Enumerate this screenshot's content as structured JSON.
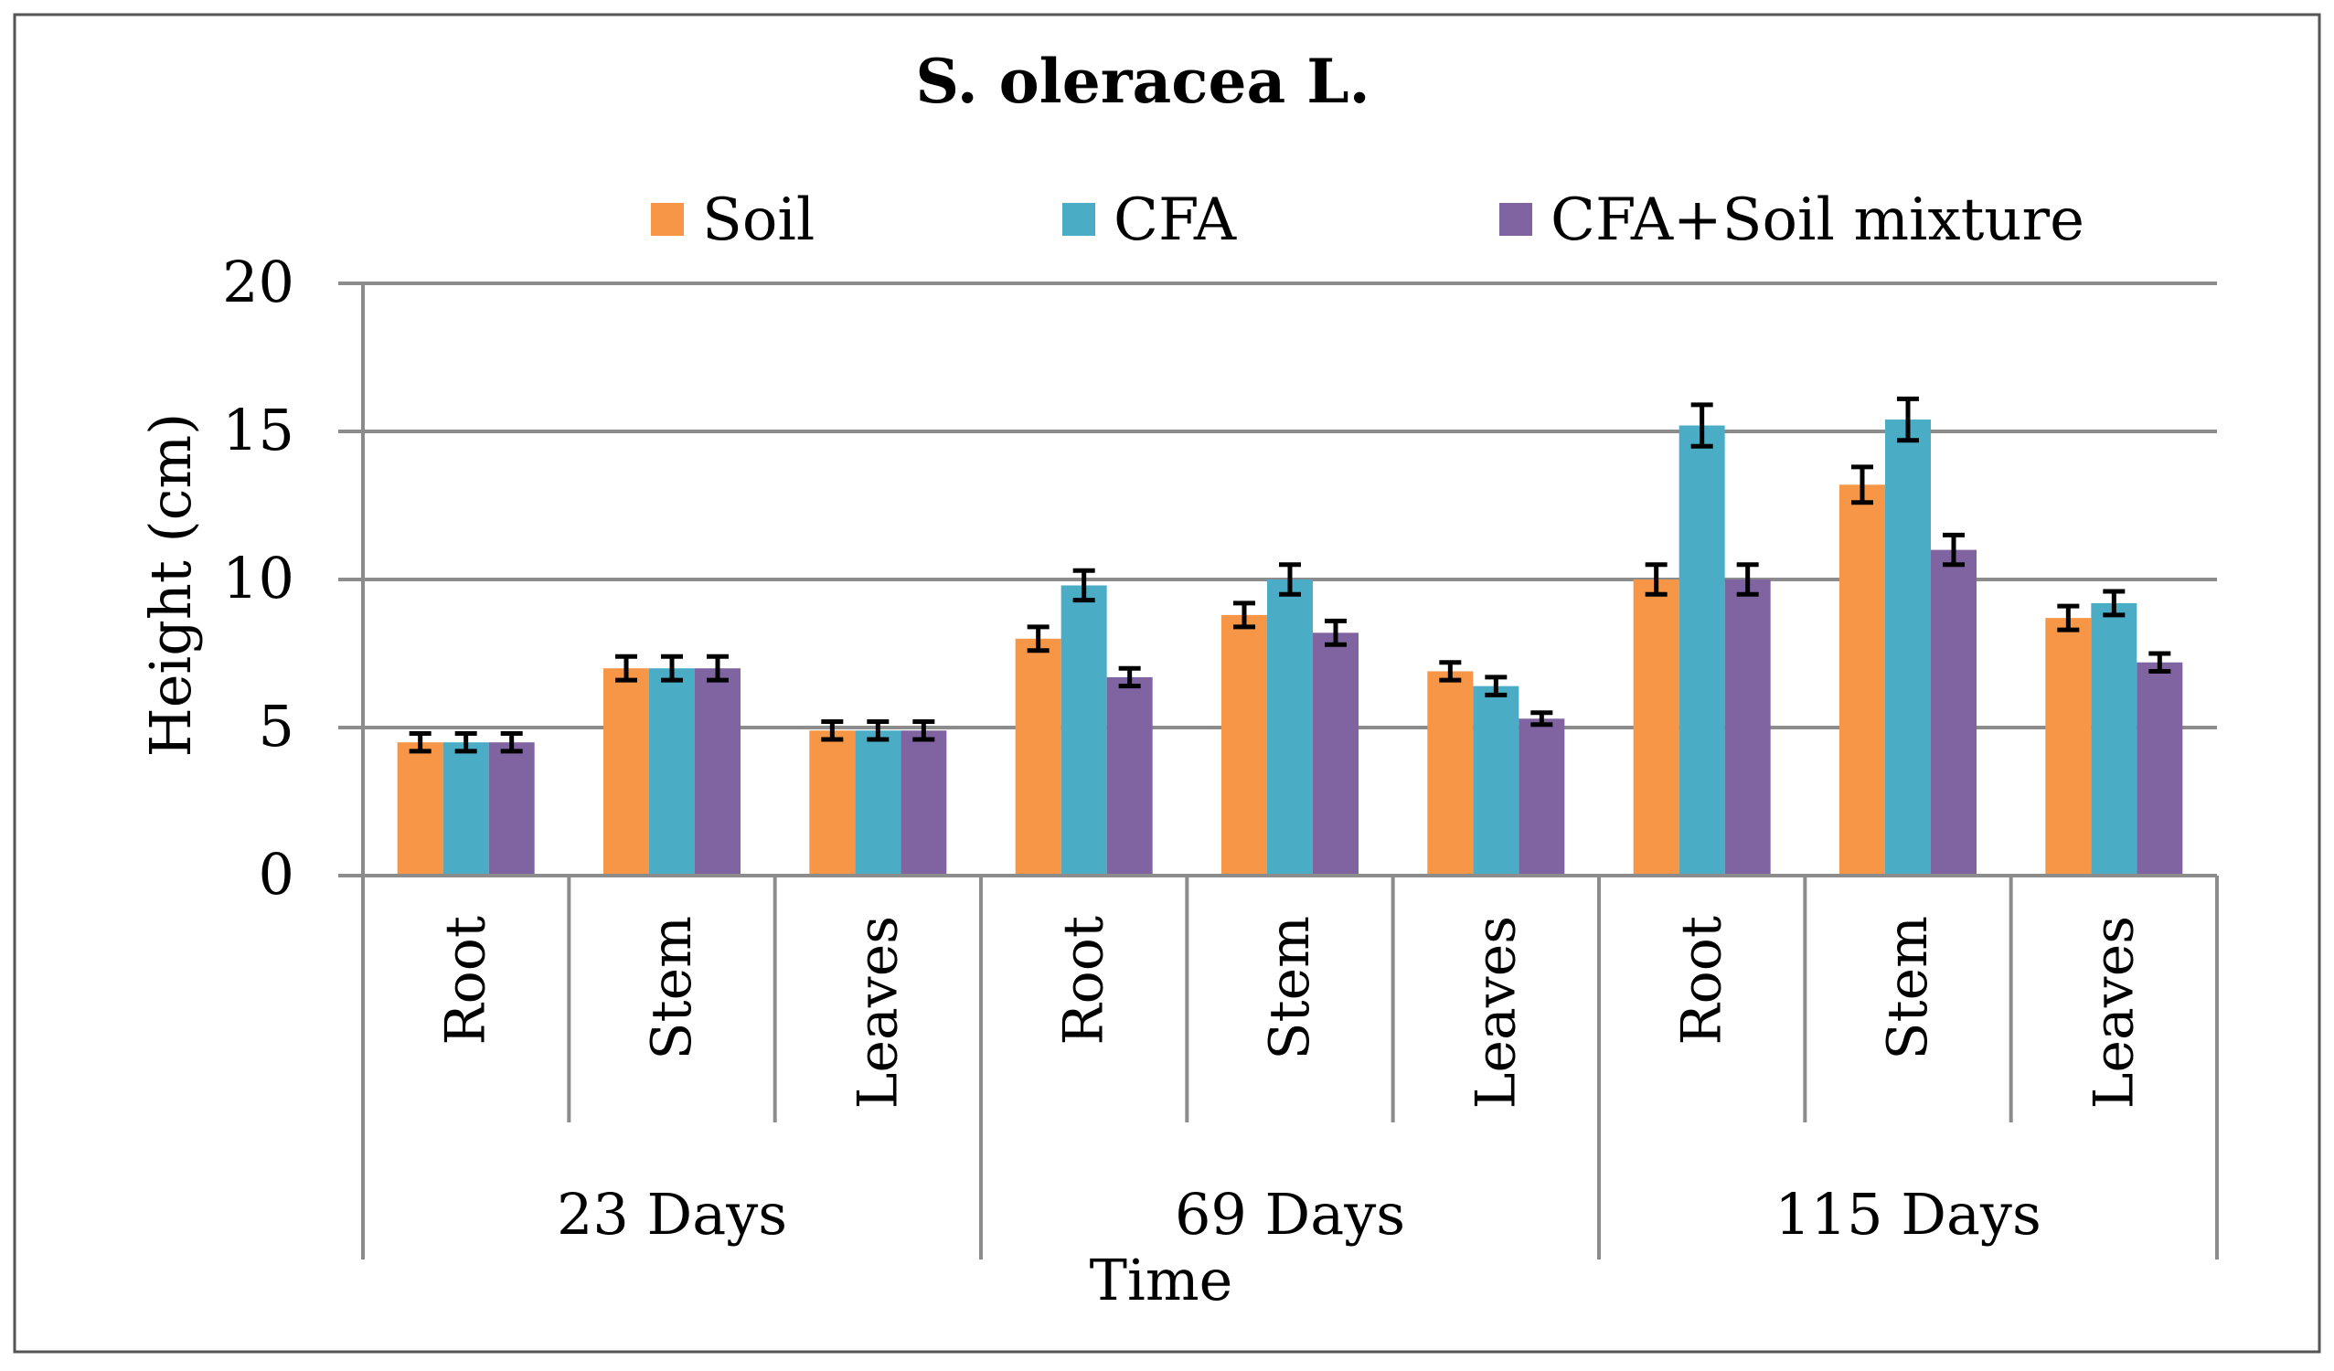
{
  "chart_data": {
    "type": "bar",
    "title": "S. oleracea L.",
    "xlabel": "Time",
    "ylabel": "Height (cm)",
    "ylim": [
      0,
      20
    ],
    "yticks": [
      "0",
      "5",
      "10",
      "15",
      "20"
    ],
    "grid": true,
    "legend_position": "top",
    "groups": [
      {
        "label": "23 Days",
        "categories": [
          "Root",
          "Stem",
          "Leaves"
        ]
      },
      {
        "label": "69 Days",
        "categories": [
          "Root",
          "Stem",
          "Leaves"
        ]
      },
      {
        "label": "115  Days",
        "categories": [
          "Root",
          "Stem",
          "Leaves"
        ]
      }
    ],
    "categories": [
      "Root",
      "Stem",
      "Leaves",
      "Root",
      "Stem",
      "Leaves",
      "Root",
      "Stem",
      "Leaves"
    ],
    "series": [
      {
        "name": "Soil",
        "color": "#F79646",
        "values": [
          4.5,
          7.0,
          4.9,
          8.0,
          8.8,
          6.9,
          10.0,
          13.2,
          8.7
        ],
        "errors": [
          0.3,
          0.4,
          0.3,
          0.4,
          0.4,
          0.3,
          0.5,
          0.6,
          0.4
        ]
      },
      {
        "name": "CFA",
        "color": "#4BACC6",
        "values": [
          4.5,
          7.0,
          4.9,
          9.8,
          10.0,
          6.4,
          15.2,
          15.4,
          9.2
        ],
        "errors": [
          0.3,
          0.4,
          0.3,
          0.5,
          0.5,
          0.3,
          0.7,
          0.7,
          0.4
        ]
      },
      {
        "name": "CFA+Soil mixture",
        "color": "#8064A2",
        "values": [
          4.5,
          7.0,
          4.9,
          6.7,
          8.2,
          5.3,
          10.0,
          11.0,
          7.2
        ],
        "errors": [
          0.3,
          0.4,
          0.3,
          0.3,
          0.4,
          0.2,
          0.5,
          0.5,
          0.3
        ]
      }
    ]
  }
}
